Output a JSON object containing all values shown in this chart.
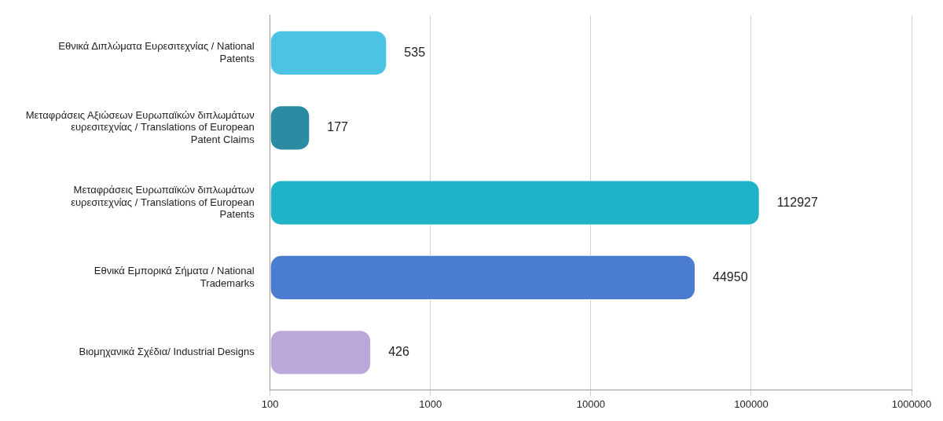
{
  "chart_data": {
    "type": "bar",
    "orientation": "horizontal",
    "categories": [
      "Εθνικά Διπλώματα Ευρεσιτεχνίας / National Patents",
      "Μεταφράσεις Αξιώσεων Ευρωπαϊκών διπλωμάτων ευρεσιτεχνίας / Translations of European Patent Claims",
      "Μεταφράσεις Ευρωπαϊκών διπλωμάτων ευρεσιτεχνίας / Translations of European Patents",
      "Εθνικά Εμπορικά Σήματα / National Trademarks",
      "Βιομηχανικά Σχέδια/ Industrial Designs"
    ],
    "values": [
      535,
      177,
      112927,
      44950,
      426
    ],
    "colors": [
      "#4cc3e3",
      "#2a8ba3",
      "#1fb3c7",
      "#4a7dd0",
      "#b9a9db"
    ],
    "log": "x",
    "xlim": [
      100,
      1000000
    ],
    "xticks": [
      100,
      1000,
      10000,
      100000,
      1000000
    ],
    "grid": "x",
    "legend": false,
    "data_labels": true
  }
}
